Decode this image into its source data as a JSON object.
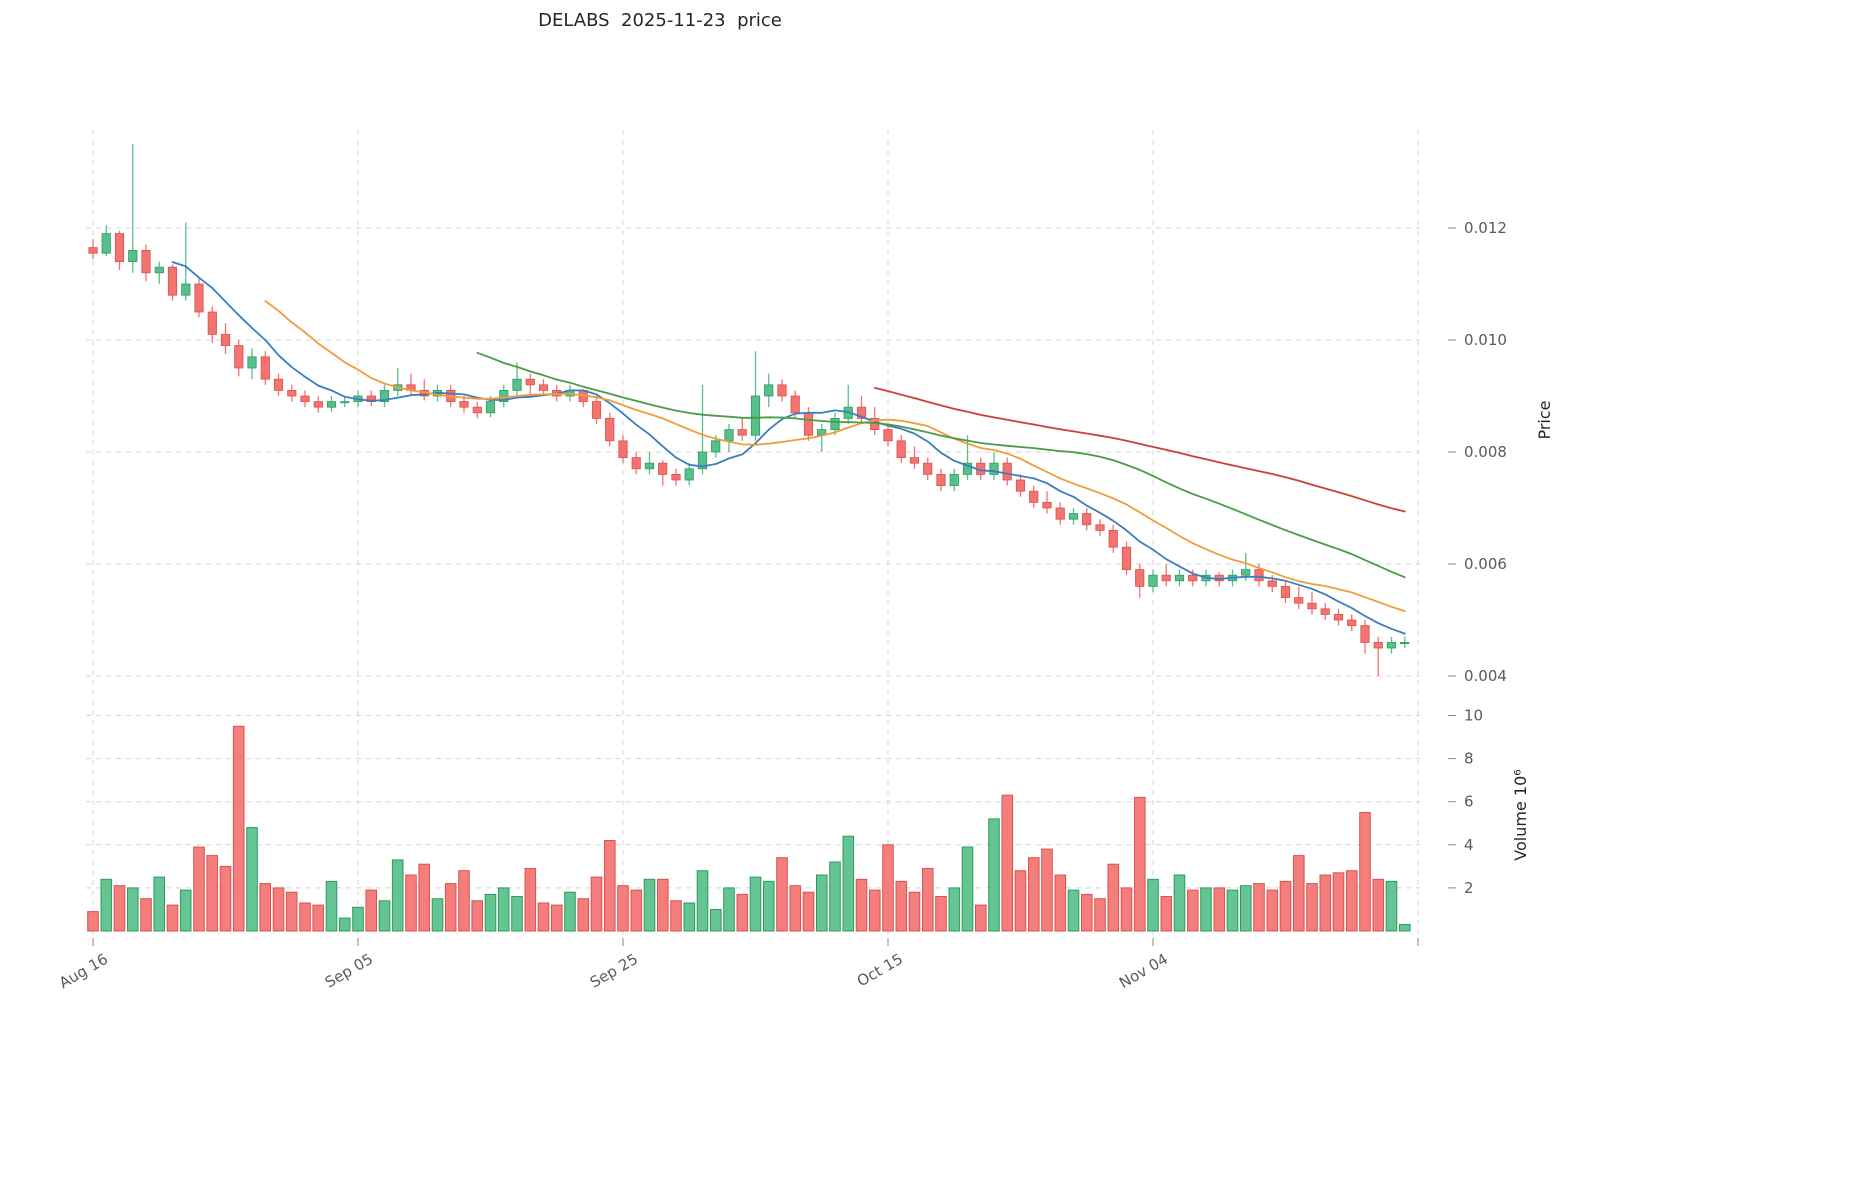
{
  "chart_data": {
    "type": "candlestick",
    "title": "DELABS  2025-11-23  price",
    "panels": [
      "price",
      "volume"
    ],
    "legend_position": "none",
    "grid": true,
    "x_axis": {
      "tick_labels": [
        "Aug 16",
        "Sep 05",
        "Sep 25",
        "Oct 15",
        "Nov 04"
      ],
      "tick_indices": [
        0,
        20,
        40,
        60,
        80
      ],
      "extra_grid_index": 100
    },
    "price_axis": {
      "label": "Price",
      "ticks": [
        0.004,
        0.006,
        0.008,
        0.01,
        0.012
      ],
      "range": [
        0.0035,
        0.0138
      ]
    },
    "volume_axis": {
      "label": "Volume  10⁶",
      "ticks": [
        2,
        4,
        6,
        8,
        10
      ],
      "range": [
        0,
        10.5
      ],
      "unit_multiplier": 1000000
    },
    "moving_averages": [
      {
        "name": "ma-short",
        "window": 7,
        "color": "#3a7ebf"
      },
      {
        "name": "ma-mid",
        "window": 14,
        "color": "#f29b3b"
      },
      {
        "name": "ma-long",
        "window": 30,
        "color": "#4a9c45"
      },
      {
        "name": "ma-xlong",
        "window": 60,
        "color": "#cd3f34"
      }
    ],
    "colors": {
      "up": "#57c08a",
      "down": "#f27370",
      "up_edge": "#2f9a62",
      "down_edge": "#d9534f",
      "grid": "#d4d4d4",
      "tick_text": "#5a5a5a",
      "title_text": "#262626"
    },
    "dates": [
      "2025-08-16",
      "2025-08-17",
      "2025-08-18",
      "2025-08-19",
      "2025-08-20",
      "2025-08-21",
      "2025-08-22",
      "2025-08-23",
      "2025-08-24",
      "2025-08-25",
      "2025-08-26",
      "2025-08-27",
      "2025-08-28",
      "2025-08-29",
      "2025-08-30",
      "2025-08-31",
      "2025-09-01",
      "2025-09-02",
      "2025-09-03",
      "2025-09-04",
      "2025-09-05",
      "2025-09-06",
      "2025-09-07",
      "2025-09-08",
      "2025-09-09",
      "2025-09-10",
      "2025-09-11",
      "2025-09-12",
      "2025-09-13",
      "2025-09-14",
      "2025-09-15",
      "2025-09-16",
      "2025-09-17",
      "2025-09-18",
      "2025-09-19",
      "2025-09-20",
      "2025-09-21",
      "2025-09-22",
      "2025-09-23",
      "2025-09-24",
      "2025-09-25",
      "2025-09-26",
      "2025-09-27",
      "2025-09-28",
      "2025-09-29",
      "2025-09-30",
      "2025-10-01",
      "2025-10-02",
      "2025-10-03",
      "2025-10-04",
      "2025-10-05",
      "2025-10-06",
      "2025-10-07",
      "2025-10-08",
      "2025-10-09",
      "2025-10-10",
      "2025-10-11",
      "2025-10-12",
      "2025-10-13",
      "2025-10-14",
      "2025-10-15",
      "2025-10-16",
      "2025-10-17",
      "2025-10-18",
      "2025-10-19",
      "2025-10-20",
      "2025-10-21",
      "2025-10-22",
      "2025-10-23",
      "2025-10-24",
      "2025-10-25",
      "2025-10-26",
      "2025-10-27",
      "2025-10-28",
      "2025-10-29",
      "2025-10-30",
      "2025-10-31",
      "2025-11-01",
      "2025-11-02",
      "2025-11-03",
      "2025-11-04",
      "2025-11-05",
      "2025-11-06",
      "2025-11-07",
      "2025-11-08",
      "2025-11-09",
      "2025-11-10",
      "2025-11-11",
      "2025-11-12",
      "2025-11-13",
      "2025-11-14",
      "2025-11-15",
      "2025-11-16",
      "2025-11-17",
      "2025-11-18",
      "2025-11-19",
      "2025-11-20",
      "2025-11-21",
      "2025-11-22",
      "2025-11-23"
    ],
    "ohlc": [
      [
        0.01165,
        0.0118,
        0.01145,
        0.01155
      ],
      [
        0.01155,
        0.01205,
        0.0115,
        0.0119
      ],
      [
        0.0119,
        0.01195,
        0.01125,
        0.0114
      ],
      [
        0.0114,
        0.0135,
        0.0112,
        0.0116
      ],
      [
        0.0116,
        0.0117,
        0.01105,
        0.0112
      ],
      [
        0.0112,
        0.0114,
        0.011,
        0.0113
      ],
      [
        0.0113,
        0.01135,
        0.0107,
        0.0108
      ],
      [
        0.0108,
        0.0121,
        0.0107,
        0.011
      ],
      [
        0.011,
        0.0111,
        0.0104,
        0.0105
      ],
      [
        0.0105,
        0.0106,
        0.00995,
        0.0101
      ],
      [
        0.0101,
        0.0103,
        0.00975,
        0.0099
      ],
      [
        0.0099,
        0.01,
        0.00935,
        0.0095
      ],
      [
        0.0095,
        0.00985,
        0.0093,
        0.0097
      ],
      [
        0.0097,
        0.0098,
        0.0092,
        0.0093
      ],
      [
        0.0093,
        0.0094,
        0.009,
        0.0091
      ],
      [
        0.0091,
        0.0092,
        0.0089,
        0.009
      ],
      [
        0.009,
        0.0091,
        0.0088,
        0.0089
      ],
      [
        0.0089,
        0.009,
        0.0087,
        0.0088
      ],
      [
        0.0088,
        0.009,
        0.00872,
        0.0089
      ],
      [
        0.0089,
        0.009,
        0.0088,
        0.0089
      ],
      [
        0.0089,
        0.0091,
        0.0088,
        0.009
      ],
      [
        0.009,
        0.0091,
        0.00882,
        0.0089
      ],
      [
        0.0089,
        0.0092,
        0.0088,
        0.0091
      ],
      [
        0.0091,
        0.0095,
        0.009,
        0.0092
      ],
      [
        0.0092,
        0.0094,
        0.009,
        0.0091
      ],
      [
        0.0091,
        0.0093,
        0.00892,
        0.009
      ],
      [
        0.009,
        0.0092,
        0.0089,
        0.0091
      ],
      [
        0.0091,
        0.0092,
        0.0088,
        0.0089
      ],
      [
        0.0089,
        0.009,
        0.0087,
        0.0088
      ],
      [
        0.0088,
        0.0089,
        0.0086,
        0.0087
      ],
      [
        0.0087,
        0.009,
        0.00862,
        0.0089
      ],
      [
        0.0089,
        0.0092,
        0.0088,
        0.0091
      ],
      [
        0.0091,
        0.0096,
        0.009,
        0.0093
      ],
      [
        0.0093,
        0.0094,
        0.009,
        0.0092
      ],
      [
        0.0092,
        0.0093,
        0.009,
        0.0091
      ],
      [
        0.0091,
        0.0092,
        0.0089,
        0.009
      ],
      [
        0.009,
        0.0092,
        0.0089,
        0.0091
      ],
      [
        0.0091,
        0.00912,
        0.0088,
        0.0089
      ],
      [
        0.0089,
        0.009,
        0.0085,
        0.0086
      ],
      [
        0.0086,
        0.0087,
        0.0081,
        0.0082
      ],
      [
        0.0082,
        0.0083,
        0.0078,
        0.0079
      ],
      [
        0.0079,
        0.008,
        0.0076,
        0.0077
      ],
      [
        0.0077,
        0.008,
        0.0076,
        0.0078
      ],
      [
        0.0078,
        0.00785,
        0.0074,
        0.0076
      ],
      [
        0.0076,
        0.0077,
        0.0074,
        0.0075
      ],
      [
        0.0075,
        0.0078,
        0.0074,
        0.0077
      ],
      [
        0.0077,
        0.0092,
        0.0076,
        0.008
      ],
      [
        0.008,
        0.0083,
        0.0079,
        0.0082
      ],
      [
        0.0082,
        0.0085,
        0.008,
        0.0084
      ],
      [
        0.0084,
        0.0086,
        0.0082,
        0.0083
      ],
      [
        0.0083,
        0.0098,
        0.0082,
        0.009
      ],
      [
        0.009,
        0.0094,
        0.0088,
        0.0092
      ],
      [
        0.0092,
        0.0093,
        0.0089,
        0.009
      ],
      [
        0.009,
        0.0091,
        0.0086,
        0.0087
      ],
      [
        0.0087,
        0.0088,
        0.0082,
        0.0083
      ],
      [
        0.0083,
        0.0085,
        0.008,
        0.0084
      ],
      [
        0.0084,
        0.0087,
        0.0083,
        0.0086
      ],
      [
        0.0086,
        0.0092,
        0.0085,
        0.0088
      ],
      [
        0.0088,
        0.009,
        0.0085,
        0.0086
      ],
      [
        0.0086,
        0.0088,
        0.0083,
        0.0084
      ],
      [
        0.0084,
        0.0085,
        0.0081,
        0.0082
      ],
      [
        0.0082,
        0.0083,
        0.0078,
        0.0079
      ],
      [
        0.0079,
        0.0081,
        0.0077,
        0.0078
      ],
      [
        0.0078,
        0.0079,
        0.0075,
        0.0076
      ],
      [
        0.0076,
        0.0077,
        0.0073,
        0.0074
      ],
      [
        0.0074,
        0.0077,
        0.0073,
        0.0076
      ],
      [
        0.0076,
        0.0083,
        0.0075,
        0.0078
      ],
      [
        0.0078,
        0.0079,
        0.0075,
        0.0076
      ],
      [
        0.0076,
        0.008,
        0.0075,
        0.0078
      ],
      [
        0.0078,
        0.0079,
        0.0074,
        0.0075
      ],
      [
        0.0075,
        0.0076,
        0.0072,
        0.0073
      ],
      [
        0.0073,
        0.0074,
        0.007,
        0.0071
      ],
      [
        0.0071,
        0.0073,
        0.0069,
        0.007
      ],
      [
        0.007,
        0.0071,
        0.0067,
        0.0068
      ],
      [
        0.0068,
        0.007,
        0.0067,
        0.0069
      ],
      [
        0.0069,
        0.007,
        0.0066,
        0.0067
      ],
      [
        0.0067,
        0.0068,
        0.0065,
        0.0066
      ],
      [
        0.0066,
        0.0067,
        0.0062,
        0.0063
      ],
      [
        0.0063,
        0.0064,
        0.0058,
        0.0059
      ],
      [
        0.0059,
        0.006,
        0.0054,
        0.0056
      ],
      [
        0.0056,
        0.0059,
        0.0055,
        0.0058
      ],
      [
        0.0058,
        0.006,
        0.0056,
        0.0057
      ],
      [
        0.0057,
        0.0059,
        0.0056,
        0.0058
      ],
      [
        0.0058,
        0.0059,
        0.0056,
        0.0057
      ],
      [
        0.0057,
        0.0059,
        0.0056,
        0.0058
      ],
      [
        0.0058,
        0.00585,
        0.0056,
        0.0057
      ],
      [
        0.0057,
        0.0059,
        0.0056,
        0.0058
      ],
      [
        0.0058,
        0.0062,
        0.0057,
        0.0059
      ],
      [
        0.0059,
        0.006,
        0.0056,
        0.0057
      ],
      [
        0.0057,
        0.0058,
        0.0055,
        0.0056
      ],
      [
        0.0056,
        0.0057,
        0.0053,
        0.0054
      ],
      [
        0.0054,
        0.0056,
        0.0052,
        0.0053
      ],
      [
        0.0053,
        0.0055,
        0.0051,
        0.0052
      ],
      [
        0.0052,
        0.0053,
        0.005,
        0.0051
      ],
      [
        0.0051,
        0.0052,
        0.0049,
        0.005
      ],
      [
        0.005,
        0.0051,
        0.0048,
        0.0049
      ],
      [
        0.0049,
        0.005,
        0.0044,
        0.0046
      ],
      [
        0.0046,
        0.0047,
        0.004,
        0.0045
      ],
      [
        0.0045,
        0.0047,
        0.0044,
        0.0046
      ],
      [
        0.0046,
        0.0047,
        0.0045,
        0.0046
      ]
    ],
    "volume": [
      0.9,
      2.4,
      2.1,
      2.0,
      1.5,
      2.5,
      1.2,
      1.9,
      3.9,
      3.5,
      3.0,
      9.5,
      4.8,
      2.2,
      2.0,
      1.8,
      1.3,
      1.2,
      2.3,
      0.6,
      1.1,
      1.9,
      1.4,
      3.3,
      2.6,
      3.1,
      1.5,
      2.2,
      2.8,
      1.4,
      1.7,
      2.0,
      1.6,
      2.9,
      1.3,
      1.2,
      1.8,
      1.5,
      2.5,
      4.2,
      2.1,
      1.9,
      2.4,
      2.4,
      1.4,
      1.3,
      2.8,
      1.0,
      2.0,
      1.7,
      2.5,
      2.3,
      3.4,
      2.1,
      1.8,
      2.6,
      3.2,
      4.4,
      2.4,
      1.9,
      4.0,
      2.3,
      1.8,
      2.9,
      1.6,
      2.0,
      3.9,
      1.2,
      5.2,
      6.3,
      2.8,
      3.4,
      3.8,
      2.6,
      1.9,
      1.7,
      1.5,
      3.1,
      2.0,
      6.2,
      2.4,
      1.6,
      2.6,
      1.9,
      2.0,
      2.0,
      1.9,
      2.1,
      2.2,
      1.9,
      2.3,
      3.5,
      2.2,
      2.6,
      2.7,
      2.8,
      5.5,
      2.4,
      2.3,
      0.3
    ]
  }
}
